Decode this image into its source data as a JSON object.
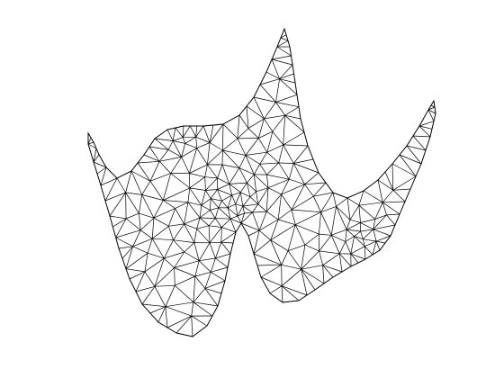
{
  "figure": {
    "background": "#ffffff",
    "mesh_color": "#000000",
    "description_type": "triangulated 3D surface wireframe"
  }
}
